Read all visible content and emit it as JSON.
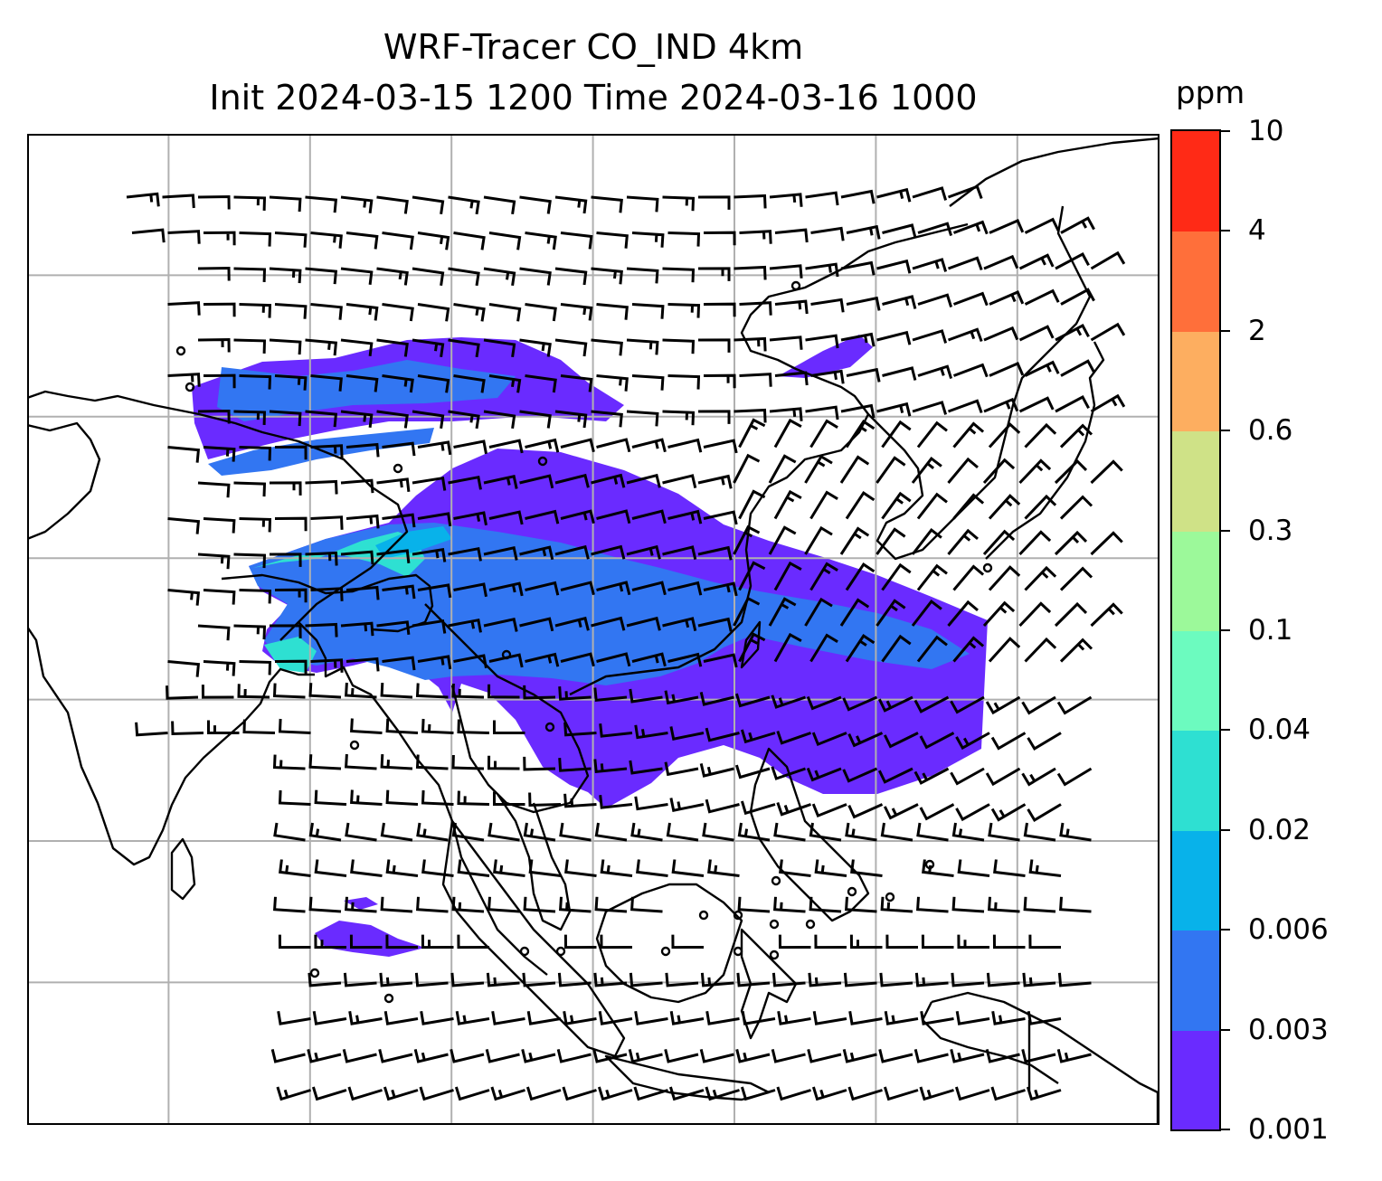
{
  "title": {
    "line1": "WRF-Tracer CO_IND 4km",
    "line2": "Init 2024-03-15 1200 Time 2024-03-16 1000"
  },
  "colorbar": {
    "unit": "ppm",
    "levels": [
      "0.001",
      "0.003",
      "0.006",
      "0.02",
      "0.04",
      "0.1",
      "0.3",
      "0.6",
      "2",
      "4",
      "10"
    ],
    "colors": [
      "#6a2bff",
      "#3276f2",
      "#08b2ea",
      "#2ee0d2",
      "#6cfbbf",
      "#9cf99a",
      "#cfe287",
      "#fdae60",
      "#ff6f3a",
      "#ff2a16"
    ]
  },
  "map": {
    "projection": "lat-lon",
    "gridlines": true,
    "coastlines": true,
    "wind_barbs": true,
    "colors": {
      "gridline": "#b0b0b0",
      "coastline": "#000000",
      "barb": "#000000"
    }
  }
}
